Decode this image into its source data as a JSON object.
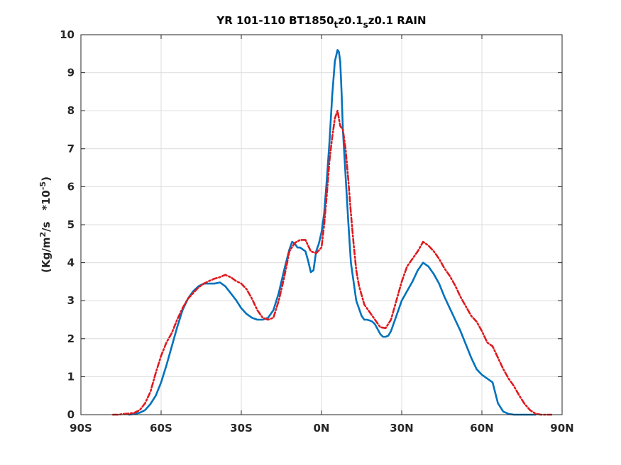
{
  "chart_data": {
    "type": "line",
    "title": "YR 101-110 BT1850",
    "title_sub1": "t",
    "title_mid": "z0.1",
    "title_sub2": "s",
    "title_end": "z0.1 RAIN",
    "ylabel_main": "(Kg/m",
    "ylabel_sup": "2",
    "ylabel_mid": "/s   *10",
    "ylabel_exp": "-5",
    "ylabel_close": ")",
    "xlim": [
      -90,
      90
    ],
    "ylim": [
      0,
      10
    ],
    "xticks": [
      -90,
      -60,
      -30,
      0,
      30,
      60,
      90
    ],
    "xtick_labels": [
      "90S",
      "60S",
      "30S",
      "0N",
      "30N",
      "60N",
      "90N"
    ],
    "yticks": [
      0,
      1,
      2,
      3,
      4,
      5,
      6,
      7,
      8,
      9,
      10
    ],
    "ytick_labels": [
      "0",
      "1",
      "2",
      "3",
      "4",
      "5",
      "6",
      "7",
      "8",
      "9",
      "10"
    ],
    "grid": true,
    "series": [
      {
        "color": "#0072bd",
        "style": "solid",
        "x": [
          -72,
          -70,
          -68,
          -66,
          -64,
          -62,
          -60,
          -58,
          -56,
          -54,
          -52,
          -50,
          -48,
          -46,
          -44,
          -42,
          -40,
          -38,
          -36,
          -34,
          -32,
          -30,
          -28,
          -26,
          -24,
          -22,
          -20,
          -18,
          -16,
          -14,
          -12,
          -11,
          -10,
          -9,
          -8,
          -6,
          -5,
          -4,
          -3,
          -2,
          -1,
          0,
          1,
          2,
          3,
          4,
          5,
          6,
          6.5,
          7,
          7.5,
          8,
          9,
          10,
          11,
          12,
          13,
          14,
          15,
          16,
          17,
          18,
          19,
          20,
          21,
          22,
          23,
          24,
          25,
          26,
          28,
          30,
          32,
          34,
          36,
          38,
          40,
          42,
          44,
          46,
          48,
          50,
          52,
          54,
          56,
          58,
          60,
          62,
          64,
          66,
          68,
          70,
          72,
          74,
          76,
          78,
          80
        ],
        "y": [
          0.0,
          0.02,
          0.05,
          0.12,
          0.28,
          0.5,
          0.85,
          1.3,
          1.8,
          2.3,
          2.75,
          3.05,
          3.25,
          3.38,
          3.45,
          3.45,
          3.45,
          3.48,
          3.38,
          3.2,
          3.02,
          2.8,
          2.65,
          2.55,
          2.5,
          2.5,
          2.55,
          2.75,
          3.2,
          3.8,
          4.35,
          4.55,
          4.5,
          4.4,
          4.4,
          4.3,
          4.05,
          3.75,
          3.8,
          4.3,
          4.5,
          4.8,
          5.3,
          6.2,
          7.2,
          8.4,
          9.3,
          9.6,
          9.55,
          9.3,
          8.5,
          7.5,
          6.3,
          5.1,
          4.0,
          3.5,
          3.0,
          2.8,
          2.6,
          2.5,
          2.5,
          2.48,
          2.45,
          2.38,
          2.25,
          2.12,
          2.05,
          2.05,
          2.08,
          2.2,
          2.6,
          3.0,
          3.25,
          3.5,
          3.8,
          4.0,
          3.9,
          3.7,
          3.45,
          3.1,
          2.8,
          2.5,
          2.2,
          1.85,
          1.5,
          1.2,
          1.05,
          0.95,
          0.85,
          0.3,
          0.08,
          0.02,
          0.0,
          0.0,
          0.0,
          0.0,
          0.0
        ]
      },
      {
        "color": "#e0191e",
        "style": "dashdot",
        "x": [
          -78,
          -76,
          -74,
          -72,
          -70,
          -68,
          -66,
          -64,
          -62,
          -60,
          -58,
          -56,
          -54,
          -52,
          -50,
          -48,
          -46,
          -44,
          -42,
          -40,
          -38,
          -36,
          -34,
          -32,
          -30,
          -28,
          -26,
          -24,
          -22,
          -20,
          -18,
          -16,
          -14,
          -12,
          -10,
          -8,
          -6,
          -4,
          -2,
          0,
          1,
          2,
          3,
          4,
          5,
          6,
          7,
          8,
          9,
          10,
          11,
          12,
          13,
          14,
          15,
          16,
          18,
          20,
          22,
          24,
          26,
          28,
          30,
          32,
          34,
          36,
          38,
          40,
          42,
          44,
          46,
          48,
          50,
          52,
          54,
          56,
          58,
          60,
          62,
          64,
          66,
          68,
          70,
          72,
          74,
          76,
          78,
          80,
          82,
          84,
          86
        ],
        "y": [
          0.0,
          0.0,
          0.02,
          0.03,
          0.05,
          0.12,
          0.3,
          0.6,
          1.1,
          1.55,
          1.9,
          2.15,
          2.5,
          2.8,
          3.05,
          3.2,
          3.35,
          3.45,
          3.52,
          3.58,
          3.62,
          3.68,
          3.62,
          3.52,
          3.45,
          3.3,
          3.05,
          2.75,
          2.55,
          2.5,
          2.55,
          3.0,
          3.6,
          4.3,
          4.52,
          4.6,
          4.6,
          4.3,
          4.25,
          4.4,
          5.0,
          5.8,
          6.7,
          7.3,
          7.8,
          8.0,
          7.6,
          7.5,
          7.0,
          6.2,
          5.3,
          4.5,
          3.8,
          3.4,
          3.15,
          2.9,
          2.7,
          2.5,
          2.3,
          2.28,
          2.5,
          3.0,
          3.5,
          3.9,
          4.1,
          4.3,
          4.55,
          4.45,
          4.3,
          4.1,
          3.85,
          3.65,
          3.4,
          3.1,
          2.85,
          2.6,
          2.45,
          2.2,
          1.9,
          1.8,
          1.5,
          1.2,
          0.95,
          0.75,
          0.5,
          0.28,
          0.12,
          0.03,
          0.0,
          0.0,
          0.0
        ]
      }
    ]
  }
}
